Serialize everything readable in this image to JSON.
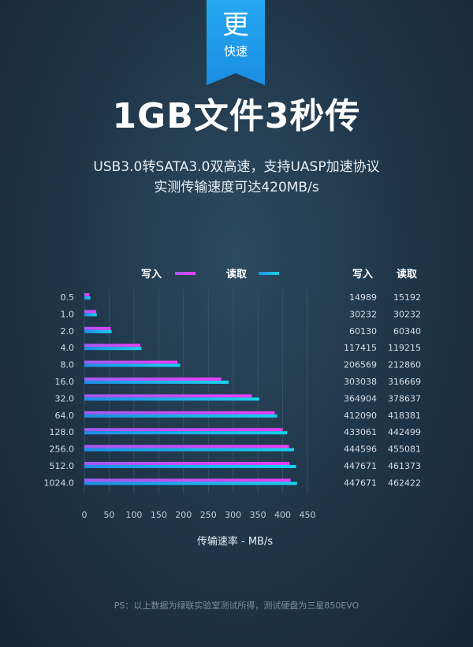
{
  "badge": {
    "char": "更",
    "label": "快速"
  },
  "headline": "1GB文件3秒传",
  "subtitle_line1": "USB3.0转SATA3.0双高速，支持UASP加速协议",
  "subtitle_line2": "实测传输速度可达420MB/s",
  "footnote": "PS：以上数据为绿联实验室测试所得，测试硬盘为三星850EVO",
  "colors": {
    "write": "#e040fb",
    "read": "#16c8ee",
    "background": "#1e3447",
    "ribbon": "#1a8ee3"
  },
  "chart_data": {
    "type": "bar",
    "orientation": "horizontal",
    "categories": [
      "0.5",
      "1.0",
      "2.0",
      "4.0",
      "8.0",
      "16.0",
      "32.0",
      "64.0",
      "128.0",
      "256.0",
      "512.0",
      "1024.0"
    ],
    "series": [
      {
        "name": "写入",
        "values": [
          10,
          24,
          53,
          113,
          188,
          276,
          338,
          384,
          400,
          413,
          414,
          416
        ]
      },
      {
        "name": "读取",
        "values": [
          12,
          25,
          55,
          115,
          193,
          291,
          353,
          389,
          409,
          423,
          427,
          429
        ]
      }
    ],
    "table": {
      "headers": [
        "写入",
        "读取"
      ],
      "rows": [
        [
          "14989",
          "15192"
        ],
        [
          "30232",
          "30232"
        ],
        [
          "60130",
          "60340"
        ],
        [
          "117415",
          "119215"
        ],
        [
          "206569",
          "212860"
        ],
        [
          "303038",
          "316669"
        ],
        [
          "364904",
          "378637"
        ],
        [
          "412090",
          "418381"
        ],
        [
          "433061",
          "442499"
        ],
        [
          "444596",
          "455081"
        ],
        [
          "447671",
          "461373"
        ],
        [
          "447671",
          "462422"
        ]
      ]
    },
    "xticks": [
      "0",
      "50",
      "100",
      "150",
      "200",
      "250",
      "300",
      "350",
      "400",
      "450"
    ],
    "xlim": [
      0,
      450
    ],
    "xlabel": "传输速率 - MB/s",
    "legend_position": "top-center",
    "grid": true
  }
}
